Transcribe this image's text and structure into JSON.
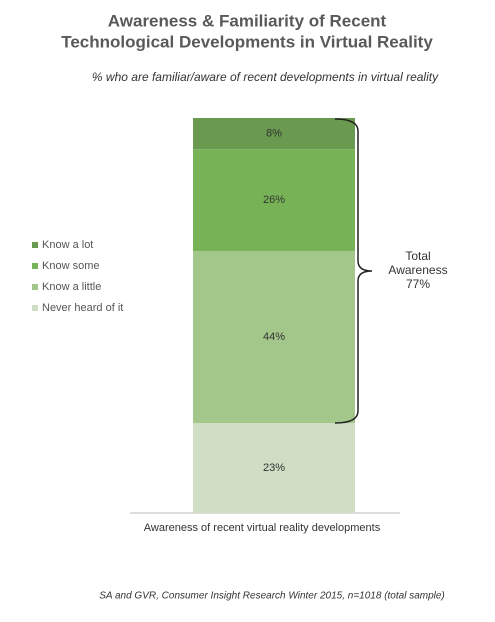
{
  "chart_data": {
    "type": "stacked-bar",
    "title": [
      "Awareness & Familiarity of Recent",
      "Technological Developments in Virtual Reality"
    ],
    "subtitle": "% who are familiar/aware of recent developments in virtual reality",
    "categories": [
      "Awareness of recent virtual reality developments"
    ],
    "series": [
      {
        "name": "Never heard of it",
        "color": "#cfdec4",
        "values": [
          23
        ],
        "value_labels": [
          "23%"
        ]
      },
      {
        "name": "Know a little",
        "color": "#a3c68a",
        "values": [
          44
        ],
        "value_labels": [
          "44%"
        ]
      },
      {
        "name": "Know some",
        "color": "#77b356",
        "values": [
          26
        ],
        "value_labels": [
          "26%"
        ]
      },
      {
        "name": "Know a lot",
        "color": "#6a9a4f",
        "values": [
          8
        ],
        "value_labels": [
          "8%"
        ]
      }
    ],
    "ylim": [
      0,
      101
    ],
    "annotation": [
      "Total",
      "Awareness",
      "77%"
    ],
    "source": "SA and GVR, Consumer Insight Research Winter 2015, n=1018 (total sample)"
  }
}
